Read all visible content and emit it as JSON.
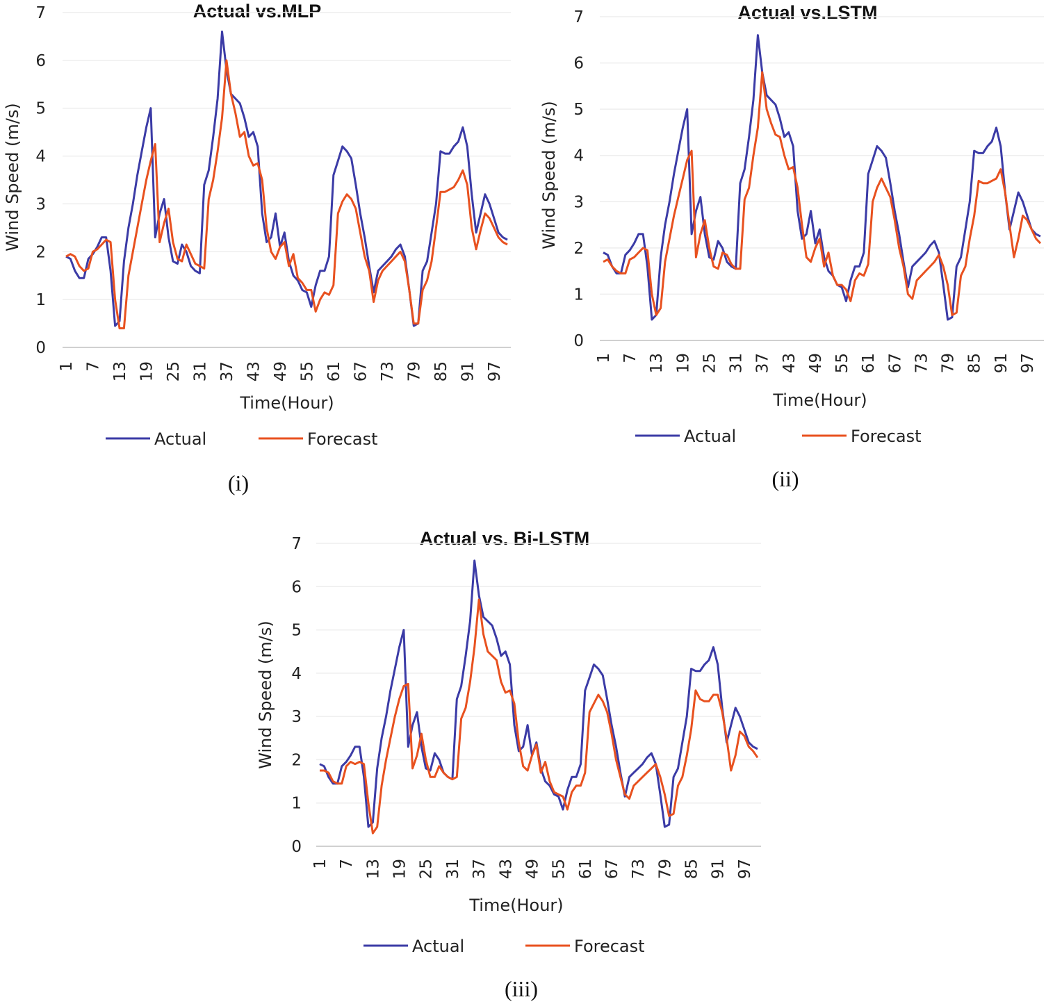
{
  "chart_data": [
    {
      "type": "line",
      "title": "Actual vs.MLP",
      "caption": "(i)",
      "xlabel": "Time(Hour)",
      "ylabel": "Wind Speed (m/s)",
      "ylim": [
        0,
        7
      ],
      "yticks": [
        0,
        1,
        2,
        3,
        4,
        5,
        6,
        7
      ],
      "xticks": [
        "1",
        "7",
        "13",
        "19",
        "25",
        "31",
        "37",
        "43",
        "49",
        "55",
        "61",
        "67",
        "73",
        "79",
        "85",
        "91",
        "97"
      ],
      "grid": true,
      "legend": "bottom",
      "series": [
        {
          "name": "Actual",
          "color": "#3b3ba6",
          "values": [
            1.9,
            1.85,
            1.6,
            1.45,
            1.45,
            1.85,
            1.95,
            2.1,
            2.3,
            2.3,
            1.6,
            0.45,
            0.55,
            1.8,
            2.5,
            3.0,
            3.6,
            4.1,
            4.6,
            5.0,
            2.3,
            2.8,
            3.1,
            2.3,
            1.8,
            1.75,
            2.15,
            2.0,
            1.7,
            1.6,
            1.55,
            3.4,
            3.7,
            4.4,
            5.2,
            6.6,
            5.8,
            5.3,
            5.2,
            5.1,
            4.8,
            4.4,
            4.5,
            4.2,
            2.8,
            2.2,
            2.3,
            2.8,
            2.1,
            2.4,
            1.8,
            1.5,
            1.4,
            1.2,
            1.15,
            0.85,
            1.3,
            1.6,
            1.6,
            1.9,
            3.6,
            3.9,
            4.2,
            4.1,
            3.95,
            3.4,
            2.8,
            2.3,
            1.7,
            1.15,
            1.6,
            1.7,
            1.8,
            1.9,
            2.05,
            2.15,
            1.9,
            1.2,
            0.45,
            0.5,
            1.6,
            1.8,
            2.4,
            3.0,
            4.1,
            4.05,
            4.05,
            4.2,
            4.3,
            4.6,
            4.2,
            3.2,
            2.4,
            2.8,
            3.2,
            3.0,
            2.7,
            2.4,
            2.3,
            2.25
          ]
        },
        {
          "name": "Forecast",
          "color": "#e8511f",
          "values": [
            1.9,
            1.95,
            1.9,
            1.7,
            1.6,
            1.65,
            2.0,
            2.05,
            2.15,
            2.25,
            2.2,
            1.0,
            0.4,
            0.4,
            1.5,
            2.0,
            2.5,
            3.0,
            3.5,
            3.9,
            4.25,
            2.2,
            2.6,
            2.9,
            2.2,
            1.85,
            1.8,
            2.15,
            1.95,
            1.75,
            1.7,
            1.65,
            3.1,
            3.5,
            4.1,
            4.8,
            6.0,
            5.3,
            4.9,
            4.4,
            4.5,
            4.0,
            3.8,
            3.85,
            3.5,
            2.5,
            2.0,
            1.85,
            2.1,
            2.2,
            1.7,
            1.95,
            1.45,
            1.35,
            1.2,
            1.2,
            0.75,
            1.0,
            1.15,
            1.1,
            1.3,
            2.8,
            3.05,
            3.2,
            3.1,
            2.9,
            2.4,
            1.9,
            1.6,
            0.95,
            1.4,
            1.6,
            1.7,
            1.8,
            1.9,
            2.0,
            1.8,
            1.2,
            0.5,
            0.5,
            1.2,
            1.4,
            1.8,
            2.5,
            3.25,
            3.25,
            3.3,
            3.35,
            3.5,
            3.7,
            3.4,
            2.5,
            2.05,
            2.45,
            2.8,
            2.7,
            2.5,
            2.3,
            2.2,
            2.15
          ]
        }
      ]
    },
    {
      "type": "line",
      "title": "Actual vs.LSTM",
      "caption": "(ii)",
      "xlabel": "Time(Hour)",
      "ylabel": "Wind Speed (m/s)",
      "ylim": [
        0,
        7
      ],
      "yticks": [
        0,
        1,
        2,
        3,
        4,
        5,
        6,
        7
      ],
      "xticks": [
        "1",
        "7",
        "13",
        "19",
        "25",
        "31",
        "37",
        "43",
        "49",
        "55",
        "61",
        "67",
        "73",
        "79",
        "85",
        "91",
        "97"
      ],
      "grid": true,
      "legend": "bottom",
      "series": [
        {
          "name": "Actual",
          "color": "#3b3ba6",
          "values": [
            1.9,
            1.85,
            1.6,
            1.45,
            1.45,
            1.85,
            1.95,
            2.1,
            2.3,
            2.3,
            1.6,
            0.45,
            0.55,
            1.8,
            2.5,
            3.0,
            3.6,
            4.1,
            4.6,
            5.0,
            2.3,
            2.8,
            3.1,
            2.3,
            1.8,
            1.75,
            2.15,
            2.0,
            1.7,
            1.6,
            1.55,
            3.4,
            3.7,
            4.4,
            5.2,
            6.6,
            5.8,
            5.3,
            5.2,
            5.1,
            4.8,
            4.4,
            4.5,
            4.2,
            2.8,
            2.2,
            2.3,
            2.8,
            2.1,
            2.4,
            1.8,
            1.5,
            1.4,
            1.2,
            1.15,
            0.85,
            1.3,
            1.6,
            1.6,
            1.9,
            3.6,
            3.9,
            4.2,
            4.1,
            3.95,
            3.4,
            2.8,
            2.3,
            1.7,
            1.15,
            1.6,
            1.7,
            1.8,
            1.9,
            2.05,
            2.15,
            1.9,
            1.2,
            0.45,
            0.5,
            1.6,
            1.8,
            2.4,
            3.0,
            4.1,
            4.05,
            4.05,
            4.2,
            4.3,
            4.6,
            4.2,
            3.2,
            2.4,
            2.8,
            3.2,
            3.0,
            2.7,
            2.4,
            2.3,
            2.25
          ]
        },
        {
          "name": "Forecast",
          "color": "#e8511f",
          "values": [
            1.7,
            1.75,
            1.6,
            1.5,
            1.45,
            1.45,
            1.75,
            1.8,
            1.9,
            2.0,
            1.95,
            1.0,
            0.55,
            0.7,
            1.7,
            2.2,
            2.7,
            3.1,
            3.5,
            3.9,
            4.1,
            1.8,
            2.3,
            2.6,
            2.0,
            1.6,
            1.55,
            1.9,
            1.85,
            1.65,
            1.55,
            1.55,
            3.05,
            3.3,
            4.0,
            4.6,
            5.8,
            5.0,
            4.7,
            4.45,
            4.4,
            4.0,
            3.7,
            3.75,
            3.3,
            2.5,
            1.8,
            1.7,
            2.0,
            2.2,
            1.6,
            1.9,
            1.4,
            1.2,
            1.2,
            1.1,
            0.85,
            1.3,
            1.45,
            1.4,
            1.65,
            3.0,
            3.3,
            3.5,
            3.3,
            3.1,
            2.6,
            2.0,
            1.6,
            1.0,
            0.9,
            1.3,
            1.4,
            1.5,
            1.6,
            1.7,
            1.85,
            1.6,
            1.2,
            0.55,
            0.6,
            1.4,
            1.6,
            2.2,
            2.7,
            3.45,
            3.4,
            3.4,
            3.45,
            3.5,
            3.7,
            3.2,
            2.5,
            1.8,
            2.2,
            2.7,
            2.6,
            2.4,
            2.2,
            2.1
          ]
        }
      ]
    },
    {
      "type": "line",
      "title": "Actual vs. Bi-LSTM",
      "caption": "(iii)",
      "xlabel": "Time(Hour)",
      "ylabel": "Wind Speed (m/s)",
      "ylim": [
        0,
        7
      ],
      "yticks": [
        0,
        1,
        2,
        3,
        4,
        5,
        6,
        7
      ],
      "xticks": [
        "1",
        "7",
        "13",
        "19",
        "25",
        "31",
        "37",
        "43",
        "49",
        "55",
        "61",
        "67",
        "73",
        "79",
        "85",
        "91",
        "97"
      ],
      "grid": true,
      "legend": "bottom",
      "series": [
        {
          "name": "Actual",
          "color": "#3b3ba6",
          "values": [
            1.9,
            1.85,
            1.6,
            1.45,
            1.45,
            1.85,
            1.95,
            2.1,
            2.3,
            2.3,
            1.6,
            0.45,
            0.55,
            1.8,
            2.5,
            3.0,
            3.6,
            4.1,
            4.6,
            5.0,
            2.3,
            2.8,
            3.1,
            2.3,
            1.8,
            1.75,
            2.15,
            2.0,
            1.7,
            1.6,
            1.55,
            3.4,
            3.7,
            4.4,
            5.2,
            6.6,
            5.8,
            5.3,
            5.2,
            5.1,
            4.8,
            4.4,
            4.5,
            4.2,
            2.8,
            2.2,
            2.3,
            2.8,
            2.1,
            2.4,
            1.8,
            1.5,
            1.4,
            1.2,
            1.15,
            0.85,
            1.3,
            1.6,
            1.6,
            1.9,
            3.6,
            3.9,
            4.2,
            4.1,
            3.95,
            3.4,
            2.8,
            2.3,
            1.7,
            1.15,
            1.6,
            1.7,
            1.8,
            1.9,
            2.05,
            2.15,
            1.9,
            1.2,
            0.45,
            0.5,
            1.6,
            1.8,
            2.4,
            3.0,
            4.1,
            4.05,
            4.05,
            4.2,
            4.3,
            4.6,
            4.2,
            3.2,
            2.4,
            2.8,
            3.2,
            3.0,
            2.7,
            2.4,
            2.3,
            2.25
          ]
        },
        {
          "name": "Forecast",
          "color": "#e8511f",
          "values": [
            1.75,
            1.75,
            1.7,
            1.5,
            1.45,
            1.45,
            1.85,
            1.95,
            1.9,
            1.95,
            1.9,
            1.0,
            0.3,
            0.45,
            1.4,
            2.0,
            2.5,
            3.0,
            3.4,
            3.7,
            3.75,
            1.8,
            2.1,
            2.6,
            2.0,
            1.6,
            1.6,
            1.85,
            1.7,
            1.6,
            1.55,
            1.6,
            2.95,
            3.2,
            3.8,
            4.6,
            5.7,
            4.9,
            4.5,
            4.4,
            4.3,
            3.8,
            3.55,
            3.6,
            3.3,
            2.4,
            1.85,
            1.75,
            2.1,
            2.35,
            1.7,
            1.95,
            1.5,
            1.25,
            1.2,
            1.15,
            0.85,
            1.25,
            1.4,
            1.4,
            1.7,
            3.1,
            3.3,
            3.5,
            3.35,
            3.1,
            2.6,
            2.0,
            1.6,
            1.2,
            1.1,
            1.4,
            1.5,
            1.6,
            1.7,
            1.8,
            1.9,
            1.6,
            1.2,
            0.7,
            0.75,
            1.4,
            1.6,
            2.1,
            2.7,
            3.6,
            3.4,
            3.35,
            3.35,
            3.5,
            3.5,
            3.1,
            2.5,
            1.75,
            2.1,
            2.65,
            2.55,
            2.3,
            2.2,
            2.05
          ]
        }
      ]
    }
  ]
}
